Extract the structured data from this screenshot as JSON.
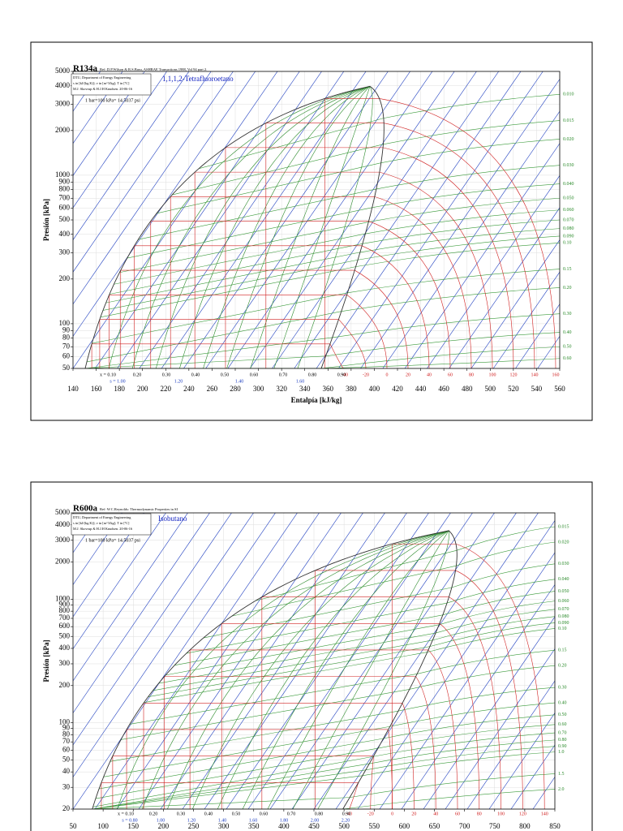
{
  "chart_data": [
    {
      "type": "line",
      "title": "R134a",
      "subtitle": "Ref: D.P.Wilson & R.S.Basu, ASHRAE Transactions 1988, Vol 94 part 2.",
      "info": [
        "DTU, Department of Energy Engineering",
        "s in [kJ/(kg K)]; v in [m^3/kg]; T in [ºC]",
        "M.J. Skovrup & H.J.H Knudsen. 20-06-16"
      ],
      "fluid": "1,1,1,2-Tetrafluoroetano",
      "note": "1 bar=100 kPa= 14.5037 psi",
      "xlabel": "Entalpía [kJ/kg]",
      "ylabel": "Presión [kPa]",
      "log_y": true,
      "grid": true,
      "xlim": [
        140,
        560
      ],
      "xticks": [
        140,
        160,
        180,
        200,
        220,
        240,
        260,
        280,
        300,
        320,
        340,
        360,
        380,
        400,
        420,
        440,
        460,
        480,
        500,
        520,
        540,
        560
      ],
      "ylim": [
        50,
        5000
      ],
      "yticks": [
        50,
        60,
        70,
        80,
        90,
        100,
        200,
        300,
        400,
        500,
        600,
        700,
        800,
        900,
        1000,
        2000,
        3000,
        4000,
        5000
      ],
      "quality_labels": [
        "x = 0.10",
        "0.20",
        "0.30",
        "0.40",
        "0.50",
        "0.60",
        "0.70",
        "0.80",
        "0.90"
      ],
      "entropy_labels": [
        "s = 1.00",
        "1.20",
        "1.40",
        "1.60"
      ],
      "temperature_labels": [
        -40,
        -20,
        0,
        20,
        40,
        60,
        80,
        100,
        120,
        140,
        160
      ],
      "volume_labels": [
        "0.010",
        "0.015",
        "0.020",
        "0.030",
        "0.040",
        "0.050",
        "0.060",
        "0.070",
        "0.080",
        "0.090",
        "0.10",
        "0.15",
        "0.20",
        "0.30",
        "0.40",
        "0.50",
        "0.60"
      ]
    },
    {
      "type": "line",
      "title": "R600a",
      "subtitle": "Ref: W.C.Reynolds: Thermodynamic Properties in SI",
      "info": [
        "DTU, Department of Energy Engineering",
        "s in [kJ/(kg K)]; v in [m^3/kg]; T in [ºC]",
        "M.J. Skovrup & H.J.H Knudsen. 20-06-16"
      ],
      "fluid": "Isobutano",
      "note": "1 bar=100 kPa= 14.5037 psi",
      "ylabel": "Presión [kPa]",
      "log_y": true,
      "grid": true,
      "xlim": [
        50,
        850
      ],
      "xticks": [
        50,
        100,
        150,
        200,
        250,
        300,
        350,
        400,
        450,
        500,
        550,
        600,
        650,
        700,
        750,
        800,
        850
      ],
      "ylim": [
        20,
        5000
      ],
      "yticks": [
        20,
        30,
        40,
        50,
        60,
        70,
        80,
        90,
        100,
        200,
        300,
        400,
        500,
        600,
        700,
        800,
        900,
        1000,
        2000,
        3000,
        4000,
        5000
      ],
      "quality_labels": [
        "x = 0.10",
        "0.20",
        "0.30",
        "0.40",
        "0.50",
        "0.60",
        "0.70",
        "0.80",
        "0.90"
      ],
      "entropy_labels": [
        "s = 0.80",
        "1.00",
        "1.20",
        "1.40",
        "1.60",
        "1.80",
        "2.00",
        "2.20"
      ],
      "temperature_labels": [
        -40,
        -20,
        0,
        20,
        40,
        60,
        80,
        100,
        120,
        140
      ],
      "volume_labels": [
        "0.015",
        "0.020",
        "0.030",
        "0.040",
        "0.050",
        "0.060",
        "0.070",
        "0.080",
        "0.090",
        "0.10",
        "0.15",
        "0.20",
        "0.30",
        "0.40",
        "0.50",
        "0.60",
        "0.70",
        "0.80",
        "0.90",
        "1.0",
        "1.5",
        "2.0",
        "3.0"
      ]
    }
  ]
}
